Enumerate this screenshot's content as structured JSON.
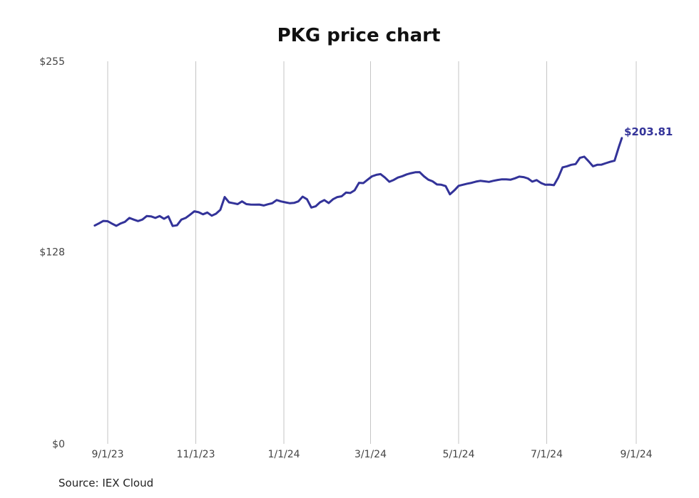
{
  "chart_data": {
    "type": "line",
    "title": "PKG price chart",
    "source": "Source: IEX Cloud",
    "series_color": "#333399",
    "grid": "vertical",
    "ylim": [
      0,
      255
    ],
    "y_ticks": [
      {
        "value": 255,
        "label": "$255"
      },
      {
        "value": 128,
        "label": "$128"
      },
      {
        "value": 0,
        "label": "$0"
      }
    ],
    "x_ticks": [
      {
        "date": "2023-09-01",
        "label": "9/1/23"
      },
      {
        "date": "2023-11-01",
        "label": "11/1/23"
      },
      {
        "date": "2024-01-01",
        "label": "1/1/24"
      },
      {
        "date": "2024-03-01",
        "label": "3/1/24"
      },
      {
        "date": "2024-05-01",
        "label": "5/1/24"
      },
      {
        "date": "2024-07-01",
        "label": "7/1/24"
      },
      {
        "date": "2024-09-01",
        "label": "9/1/24"
      }
    ],
    "last_value_label": "$203.81",
    "series": [
      {
        "points": [
          [
            "2023-08-23",
            145.5
          ],
          [
            "2023-08-26",
            147.0
          ],
          [
            "2023-08-29",
            148.6
          ],
          [
            "2023-09-01",
            148.4
          ],
          [
            "2023-09-04",
            146.8
          ],
          [
            "2023-09-07",
            145.3
          ],
          [
            "2023-09-10",
            146.9
          ],
          [
            "2023-09-13",
            148.0
          ],
          [
            "2023-09-16",
            150.6
          ],
          [
            "2023-09-19",
            149.5
          ],
          [
            "2023-09-22",
            148.5
          ],
          [
            "2023-09-25",
            149.5
          ],
          [
            "2023-09-28",
            151.8
          ],
          [
            "2023-10-01",
            151.6
          ],
          [
            "2023-10-04",
            150.6
          ],
          [
            "2023-10-07",
            151.8
          ],
          [
            "2023-10-10",
            150.0
          ],
          [
            "2023-10-13",
            151.6
          ],
          [
            "2023-10-16",
            145.2
          ],
          [
            "2023-10-19",
            145.7
          ],
          [
            "2023-10-22",
            149.5
          ],
          [
            "2023-10-25",
            150.6
          ],
          [
            "2023-10-28",
            152.7
          ],
          [
            "2023-10-31",
            155.0
          ],
          [
            "2023-11-03",
            154.4
          ],
          [
            "2023-11-06",
            153.0
          ],
          [
            "2023-11-09",
            154.2
          ],
          [
            "2023-11-12",
            152.1
          ],
          [
            "2023-11-15",
            153.4
          ],
          [
            "2023-11-18",
            156.0
          ],
          [
            "2023-11-21",
            164.5
          ],
          [
            "2023-11-24",
            161.0
          ],
          [
            "2023-11-27",
            160.4
          ],
          [
            "2023-11-30",
            159.8
          ],
          [
            "2023-12-03",
            161.6
          ],
          [
            "2023-12-06",
            159.8
          ],
          [
            "2023-12-09",
            159.5
          ],
          [
            "2023-12-12",
            159.4
          ],
          [
            "2023-12-15",
            159.5
          ],
          [
            "2023-12-18",
            158.9
          ],
          [
            "2023-12-21",
            159.7
          ],
          [
            "2023-12-24",
            160.4
          ],
          [
            "2023-12-27",
            162.5
          ],
          [
            "2023-12-30",
            161.6
          ],
          [
            "2024-01-02",
            161.0
          ],
          [
            "2024-01-05",
            160.4
          ],
          [
            "2024-01-08",
            160.6
          ],
          [
            "2024-01-11",
            161.6
          ],
          [
            "2024-01-14",
            164.8
          ],
          [
            "2024-01-17",
            163.0
          ],
          [
            "2024-01-20",
            157.5
          ],
          [
            "2024-01-23",
            158.3
          ],
          [
            "2024-01-26",
            161.0
          ],
          [
            "2024-01-29",
            162.5
          ],
          [
            "2024-02-01",
            160.5
          ],
          [
            "2024-02-04",
            163.0
          ],
          [
            "2024-02-07",
            164.5
          ],
          [
            "2024-02-10",
            165.0
          ],
          [
            "2024-02-13",
            167.5
          ],
          [
            "2024-02-16",
            167.2
          ],
          [
            "2024-02-19",
            169.0
          ],
          [
            "2024-02-22",
            174.0
          ],
          [
            "2024-02-25",
            173.8
          ],
          [
            "2024-02-28",
            176.1
          ],
          [
            "2024-03-02",
            178.3
          ],
          [
            "2024-03-05",
            179.3
          ],
          [
            "2024-03-08",
            179.8
          ],
          [
            "2024-03-11",
            177.5
          ],
          [
            "2024-03-14",
            174.7
          ],
          [
            "2024-03-17",
            175.9
          ],
          [
            "2024-03-20",
            177.5
          ],
          [
            "2024-03-23",
            178.4
          ],
          [
            "2024-03-26",
            179.6
          ],
          [
            "2024-03-29",
            180.4
          ],
          [
            "2024-04-01",
            181.0
          ],
          [
            "2024-04-04",
            181.1
          ],
          [
            "2024-04-07",
            178.3
          ],
          [
            "2024-04-10",
            176.1
          ],
          [
            "2024-04-13",
            175.0
          ],
          [
            "2024-04-16",
            172.9
          ],
          [
            "2024-04-19",
            172.7
          ],
          [
            "2024-04-22",
            171.8
          ],
          [
            "2024-04-25",
            166.3
          ],
          [
            "2024-04-28",
            168.9
          ],
          [
            "2024-05-01",
            172.0
          ],
          [
            "2024-05-04",
            172.7
          ],
          [
            "2024-05-07",
            173.4
          ],
          [
            "2024-05-10",
            174.0
          ],
          [
            "2024-05-13",
            174.8
          ],
          [
            "2024-05-16",
            175.3
          ],
          [
            "2024-05-19",
            175.0
          ],
          [
            "2024-05-22",
            174.6
          ],
          [
            "2024-05-25",
            175.3
          ],
          [
            "2024-05-28",
            175.9
          ],
          [
            "2024-05-31",
            176.3
          ],
          [
            "2024-06-03",
            176.3
          ],
          [
            "2024-06-06",
            176.1
          ],
          [
            "2024-06-09",
            177.0
          ],
          [
            "2024-06-12",
            178.1
          ],
          [
            "2024-06-15",
            177.8
          ],
          [
            "2024-06-18",
            176.9
          ],
          [
            "2024-06-21",
            174.8
          ],
          [
            "2024-06-24",
            175.8
          ],
          [
            "2024-06-27",
            173.9
          ],
          [
            "2024-06-30",
            172.7
          ],
          [
            "2024-07-03",
            172.8
          ],
          [
            "2024-07-06",
            172.4
          ],
          [
            "2024-07-09",
            177.5
          ],
          [
            "2024-07-12",
            184.3
          ],
          [
            "2024-07-15",
            185.0
          ],
          [
            "2024-07-18",
            186.0
          ],
          [
            "2024-07-21",
            186.5
          ],
          [
            "2024-07-24",
            190.6
          ],
          [
            "2024-07-27",
            191.4
          ],
          [
            "2024-07-30",
            188.4
          ],
          [
            "2024-08-02",
            185.0
          ],
          [
            "2024-08-05",
            186.0
          ],
          [
            "2024-08-08",
            186.1
          ],
          [
            "2024-08-11",
            187.1
          ],
          [
            "2024-08-14",
            188.0
          ],
          [
            "2024-08-17",
            188.7
          ],
          [
            "2024-08-20",
            198.0
          ],
          [
            "2024-08-22",
            203.81
          ]
        ]
      }
    ]
  }
}
